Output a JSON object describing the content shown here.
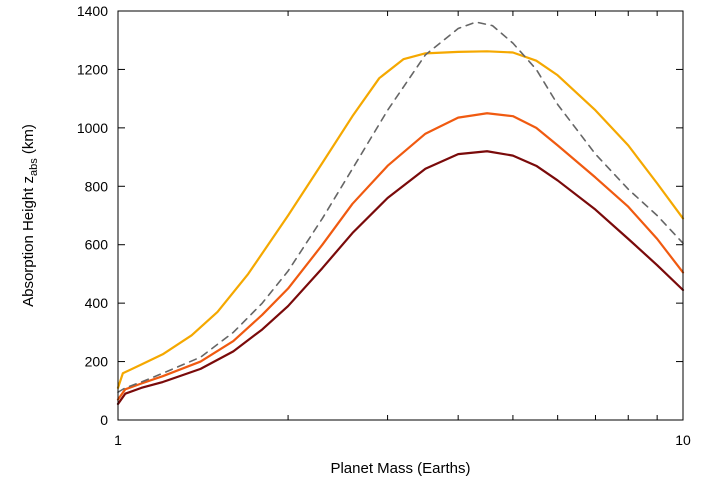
{
  "chart_data": {
    "type": "line",
    "title": "",
    "xlabel": "Planet Mass (Earths)",
    "ylabel_prefix": "Absorption Height  z",
    "ylabel_sub": "abs",
    "ylabel_suffix": " (km)",
    "x_scale": "log",
    "xlim": [
      1,
      10
    ],
    "ylim": [
      0,
      1400
    ],
    "x_tick_labels": [
      "1",
      "10"
    ],
    "y_tick_labels": [
      "0",
      "200",
      "400",
      "600",
      "800",
      "1000",
      "1200",
      "1400"
    ],
    "grid": false,
    "legend": "none",
    "series": [
      {
        "color": "#f5a800",
        "dash": "solid",
        "points": [
          [
            1.0,
            110
          ],
          [
            1.02,
            160
          ],
          [
            1.1,
            190
          ],
          [
            1.2,
            225
          ],
          [
            1.35,
            290
          ],
          [
            1.5,
            370
          ],
          [
            1.7,
            500
          ],
          [
            2.0,
            700
          ],
          [
            2.3,
            880
          ],
          [
            2.6,
            1040
          ],
          [
            2.9,
            1170
          ],
          [
            3.2,
            1235
          ],
          [
            3.5,
            1255
          ],
          [
            4.0,
            1260
          ],
          [
            4.5,
            1262
          ],
          [
            5.0,
            1258
          ],
          [
            5.5,
            1230
          ],
          [
            6.0,
            1180
          ],
          [
            7.0,
            1060
          ],
          [
            8.0,
            940
          ],
          [
            9.0,
            810
          ],
          [
            10.0,
            690
          ]
        ]
      },
      {
        "color": "#f05a10",
        "dash": "solid",
        "points": [
          [
            1.0,
            70
          ],
          [
            1.03,
            105
          ],
          [
            1.1,
            125
          ],
          [
            1.2,
            150
          ],
          [
            1.4,
            200
          ],
          [
            1.6,
            270
          ],
          [
            1.8,
            360
          ],
          [
            2.0,
            450
          ],
          [
            2.3,
            600
          ],
          [
            2.6,
            740
          ],
          [
            3.0,
            870
          ],
          [
            3.5,
            980
          ],
          [
            4.0,
            1035
          ],
          [
            4.5,
            1050
          ],
          [
            5.0,
            1040
          ],
          [
            5.5,
            1000
          ],
          [
            6.0,
            940
          ],
          [
            7.0,
            830
          ],
          [
            8.0,
            730
          ],
          [
            9.0,
            620
          ],
          [
            10.0,
            505
          ]
        ]
      },
      {
        "color": "#7a0a0a",
        "dash": "solid",
        "points": [
          [
            1.0,
            55
          ],
          [
            1.03,
            90
          ],
          [
            1.1,
            110
          ],
          [
            1.2,
            130
          ],
          [
            1.4,
            175
          ],
          [
            1.6,
            235
          ],
          [
            1.8,
            310
          ],
          [
            2.0,
            390
          ],
          [
            2.3,
            520
          ],
          [
            2.6,
            640
          ],
          [
            3.0,
            760
          ],
          [
            3.5,
            860
          ],
          [
            4.0,
            910
          ],
          [
            4.5,
            920
          ],
          [
            5.0,
            905
          ],
          [
            5.5,
            870
          ],
          [
            6.0,
            820
          ],
          [
            7.0,
            720
          ],
          [
            8.0,
            620
          ],
          [
            9.0,
            530
          ],
          [
            10.0,
            445
          ]
        ]
      },
      {
        "color": "#666666",
        "dash": "dashed",
        "points": [
          [
            1.0,
            95
          ],
          [
            1.03,
            110
          ],
          [
            1.1,
            130
          ],
          [
            1.2,
            160
          ],
          [
            1.4,
            215
          ],
          [
            1.6,
            300
          ],
          [
            1.8,
            400
          ],
          [
            2.0,
            510
          ],
          [
            2.3,
            690
          ],
          [
            2.6,
            860
          ],
          [
            3.0,
            1060
          ],
          [
            3.5,
            1250
          ],
          [
            4.0,
            1340
          ],
          [
            4.3,
            1362
          ],
          [
            4.6,
            1350
          ],
          [
            5.0,
            1290
          ],
          [
            5.5,
            1200
          ],
          [
            6.0,
            1080
          ],
          [
            7.0,
            910
          ],
          [
            8.0,
            790
          ],
          [
            9.0,
            700
          ],
          [
            10.0,
            605
          ]
        ]
      }
    ]
  }
}
